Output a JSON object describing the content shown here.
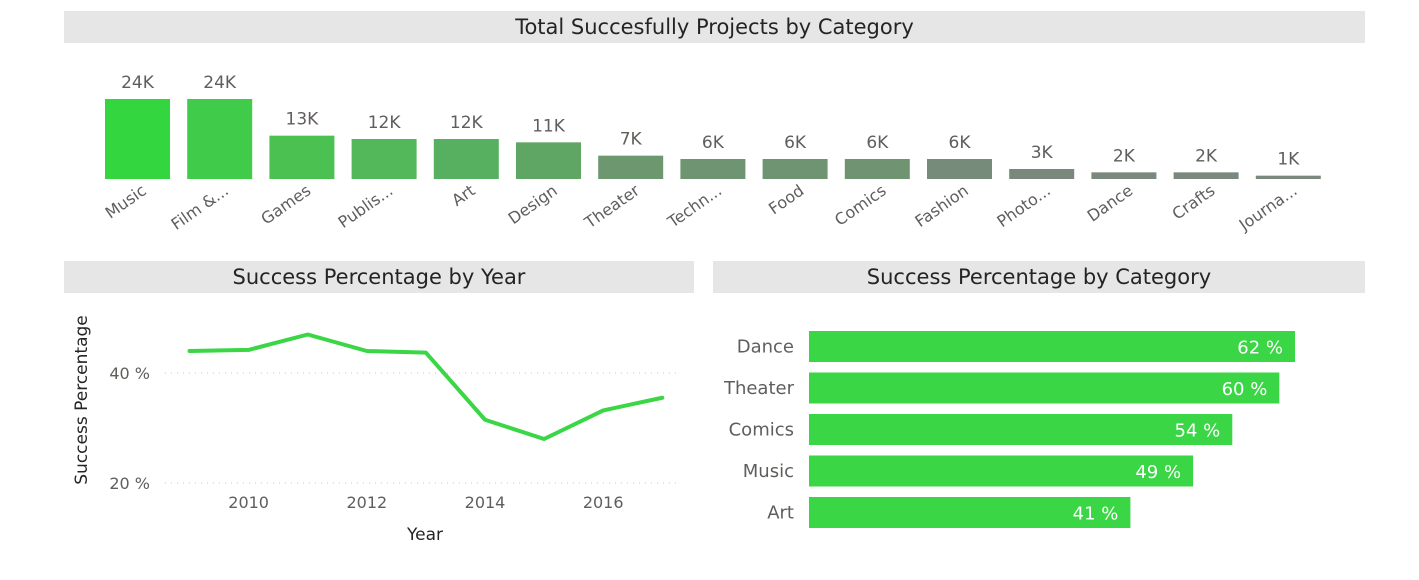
{
  "chart_data": [
    {
      "type": "bar",
      "title": "Total Succesfully Projects by Category",
      "categories": [
        "Music",
        "Film &...",
        "Games",
        "Publis...",
        "Art",
        "Design",
        "Theater",
        "Techn...",
        "Food",
        "Comics",
        "Fashion",
        "Photo...",
        "Dance",
        "Crafts",
        "Journa..."
      ],
      "values": [
        24,
        24,
        13,
        12,
        12,
        11,
        7,
        6,
        6,
        6,
        6,
        3,
        2,
        2,
        1
      ],
      "value_labels": [
        "24K",
        "24K",
        "13K",
        "12K",
        "12K",
        "11K",
        "7K",
        "6K",
        "6K",
        "6K",
        "6K",
        "3K",
        "2K",
        "2K",
        "1K"
      ],
      "value_unit": "thousands",
      "bar_colors": [
        "#33d63e",
        "#40cc4a",
        "#4bc152",
        "#52b85a",
        "#57b05f",
        "#5fa564",
        "#6d976f",
        "#6f9472",
        "#6f9472",
        "#709372",
        "#778b7a",
        "#7a887c",
        "#7b887d",
        "#7b887d",
        "#7b887d"
      ]
    },
    {
      "type": "line",
      "title": "Success Percentage by Year",
      "xlabel": "Year",
      "ylabel": "Success Percentage",
      "x": [
        2009,
        2010,
        2011,
        2012,
        2013,
        2014,
        2015,
        2016,
        2017
      ],
      "y": [
        44,
        44.2,
        47,
        44,
        43.7,
        31.5,
        28,
        33.2,
        35.5
      ],
      "xticks": [
        "2010",
        "2012",
        "2014",
        "2016"
      ],
      "yticks": [
        "20 %",
        "40 %"
      ],
      "xlim": [
        2008.5,
        2017.3
      ],
      "ylim": [
        20,
        50
      ],
      "grid": "dotted horizontal",
      "color": "#3ad645"
    },
    {
      "type": "bar",
      "orientation": "horizontal",
      "title": "Success Percentage by Category",
      "categories": [
        "Dance",
        "Theater",
        "Comics",
        "Music",
        "Art"
      ],
      "values": [
        62,
        60,
        54,
        49,
        41
      ],
      "value_labels": [
        "62 %",
        "60 %",
        "54 %",
        "49 %",
        "41 %"
      ],
      "color": "#3ad645"
    }
  ]
}
